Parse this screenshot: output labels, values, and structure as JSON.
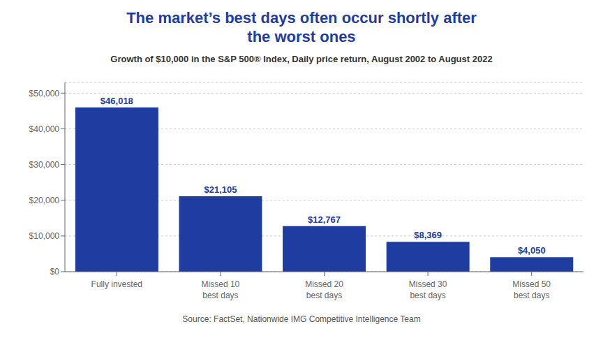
{
  "chart_data": {
    "type": "bar",
    "title": "The market’s best days often occur shortly after\nthe worst ones",
    "subtitle": "Growth of $10,000 in the S&P 500® Index, Daily price return, August 2002 to August 2022",
    "annotations": [
      "Source: FactSet, Nationwide IMG Competitive Intelligence Team"
    ],
    "categories": [
      "Fully invested",
      "Missed 10\nbest days",
      "Missed 20\nbest days",
      "Missed 30\nbest days",
      "Missed 50\nbest days"
    ],
    "values": [
      46018,
      21105,
      12767,
      8369,
      4050
    ],
    "value_labels": [
      "$46,018",
      "$21,105",
      "$12,767",
      "$8,369",
      "$4,050"
    ],
    "data_labels": true,
    "color": "#1f3da0",
    "ylim": [
      0,
      53000
    ],
    "yticks": [
      {
        "value": 0,
        "label": "$0"
      },
      {
        "value": 10000,
        "label": "$10,000"
      },
      {
        "value": 20000,
        "label": "$20,000"
      },
      {
        "value": 30000,
        "label": "$30,000"
      },
      {
        "value": 40000,
        "label": "$40,000"
      },
      {
        "value": 50000,
        "label": "$50,000"
      }
    ],
    "grid": true
  }
}
